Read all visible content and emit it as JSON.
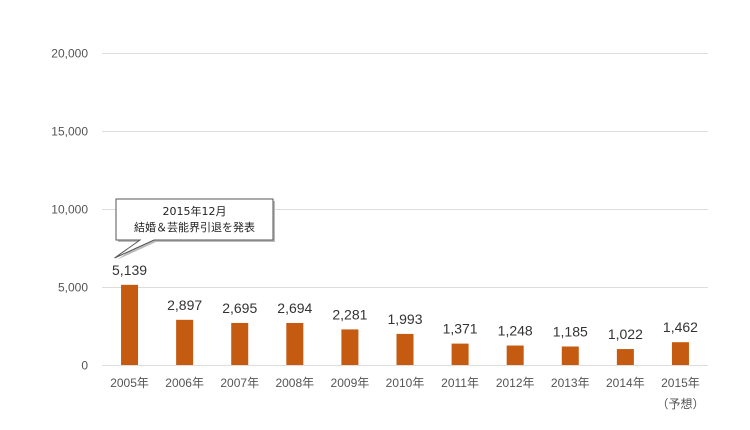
{
  "chart_data": {
    "type": "bar",
    "categories": [
      "2005年",
      "2006年",
      "2007年",
      "2008年",
      "2009年",
      "2010年",
      "2011年",
      "2012年",
      "2013年",
      "2014年",
      "2015年"
    ],
    "category_sublabels": [
      "",
      "",
      "",
      "",
      "",
      "",
      "",
      "",
      "",
      "",
      "（予想）"
    ],
    "values": [
      5139,
      2897,
      2695,
      2694,
      2281,
      1993,
      1371,
      1248,
      1185,
      1022,
      1462
    ],
    "value_labels": [
      "5,139",
      "2,897",
      "2,695",
      "2,694",
      "2,281",
      "1,993",
      "1,371",
      "1,248",
      "1,185",
      "1,022",
      "1,462"
    ],
    "ylim": [
      0,
      20000
    ],
    "yticks": [
      0,
      5000,
      10000,
      15000,
      20000
    ],
    "ytick_labels": [
      "0",
      "5,000",
      "10,000",
      "15,000",
      "20,000"
    ],
    "grid": true,
    "bar_color": "#c55a11",
    "grid_color": "#dddddd",
    "annotation": {
      "category": "2005年",
      "lines": [
        "2015年12月",
        "結婚＆芸能界引退を発表"
      ]
    }
  }
}
